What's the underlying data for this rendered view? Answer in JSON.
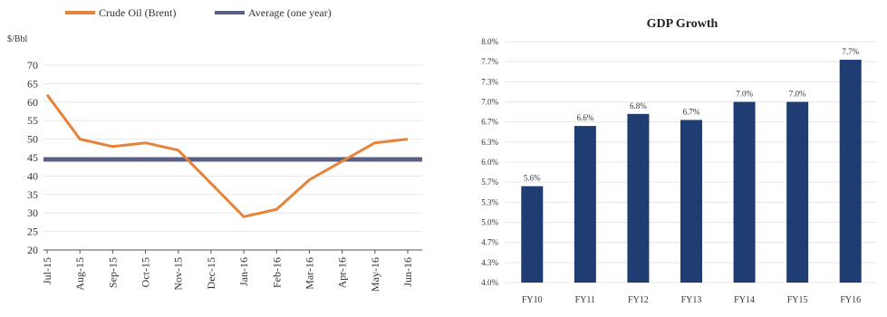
{
  "chart_data": [
    {
      "type": "line",
      "title": "",
      "ylabel": "$/Bbl",
      "ylim": [
        20,
        70
      ],
      "yticks": [
        20,
        25,
        30,
        35,
        40,
        45,
        50,
        55,
        60,
        65,
        70
      ],
      "xticks": [
        "Jul-15",
        "Aug-15",
        "Sep-15",
        "Oct-15",
        "Nov-15",
        "Dec-15",
        "Jan-16",
        "Feb-16",
        "Mar-16",
        "Apr-16",
        "May-16",
        "Jun-16"
      ],
      "legend": [
        "Crude Oil (Brent)",
        "Average (one year)"
      ],
      "colors": {
        "crude": "#e6823a",
        "average": "#5a5f86"
      },
      "series": [
        {
          "name": "Crude Oil (Brent)",
          "x": [
            "Jul-15",
            "Aug-15",
            "Sep-15",
            "Oct-15",
            "Nov-15",
            "Dec-15",
            "Jan-16",
            "Feb-16",
            "Mar-16",
            "Apr-16",
            "May-16",
            "Jun-16"
          ],
          "values": [
            62,
            50,
            48,
            49,
            47,
            38,
            29,
            31,
            39,
            44,
            49,
            50
          ]
        },
        {
          "name": "Average (one year)",
          "x": [
            "Jul-15",
            "Jun-16"
          ],
          "values": [
            44.5,
            44.5
          ]
        }
      ]
    },
    {
      "type": "bar",
      "title": "GDP Growth",
      "categories": [
        "FY10",
        "FY11",
        "FY12",
        "FY13",
        "FY14",
        "FY15",
        "FY16"
      ],
      "values": [
        5.6,
        6.6,
        6.8,
        6.7,
        7.0,
        7.0,
        7.7
      ],
      "data_labels": [
        "5.6%",
        "6.6%",
        "6.8%",
        "6.7%",
        "7.0%",
        "7.0%",
        "7.7%"
      ],
      "ylim": [
        4.0,
        8.0
      ],
      "yticks": [
        "4.0%",
        "4.3%",
        "4.7%",
        "5.0%",
        "5.3%",
        "5.7%",
        "6.0%",
        "6.3%",
        "6.7%",
        "7.0%",
        "7.3%",
        "7.7%",
        "8.0%"
      ],
      "bar_color": "#1f3c73"
    }
  ]
}
